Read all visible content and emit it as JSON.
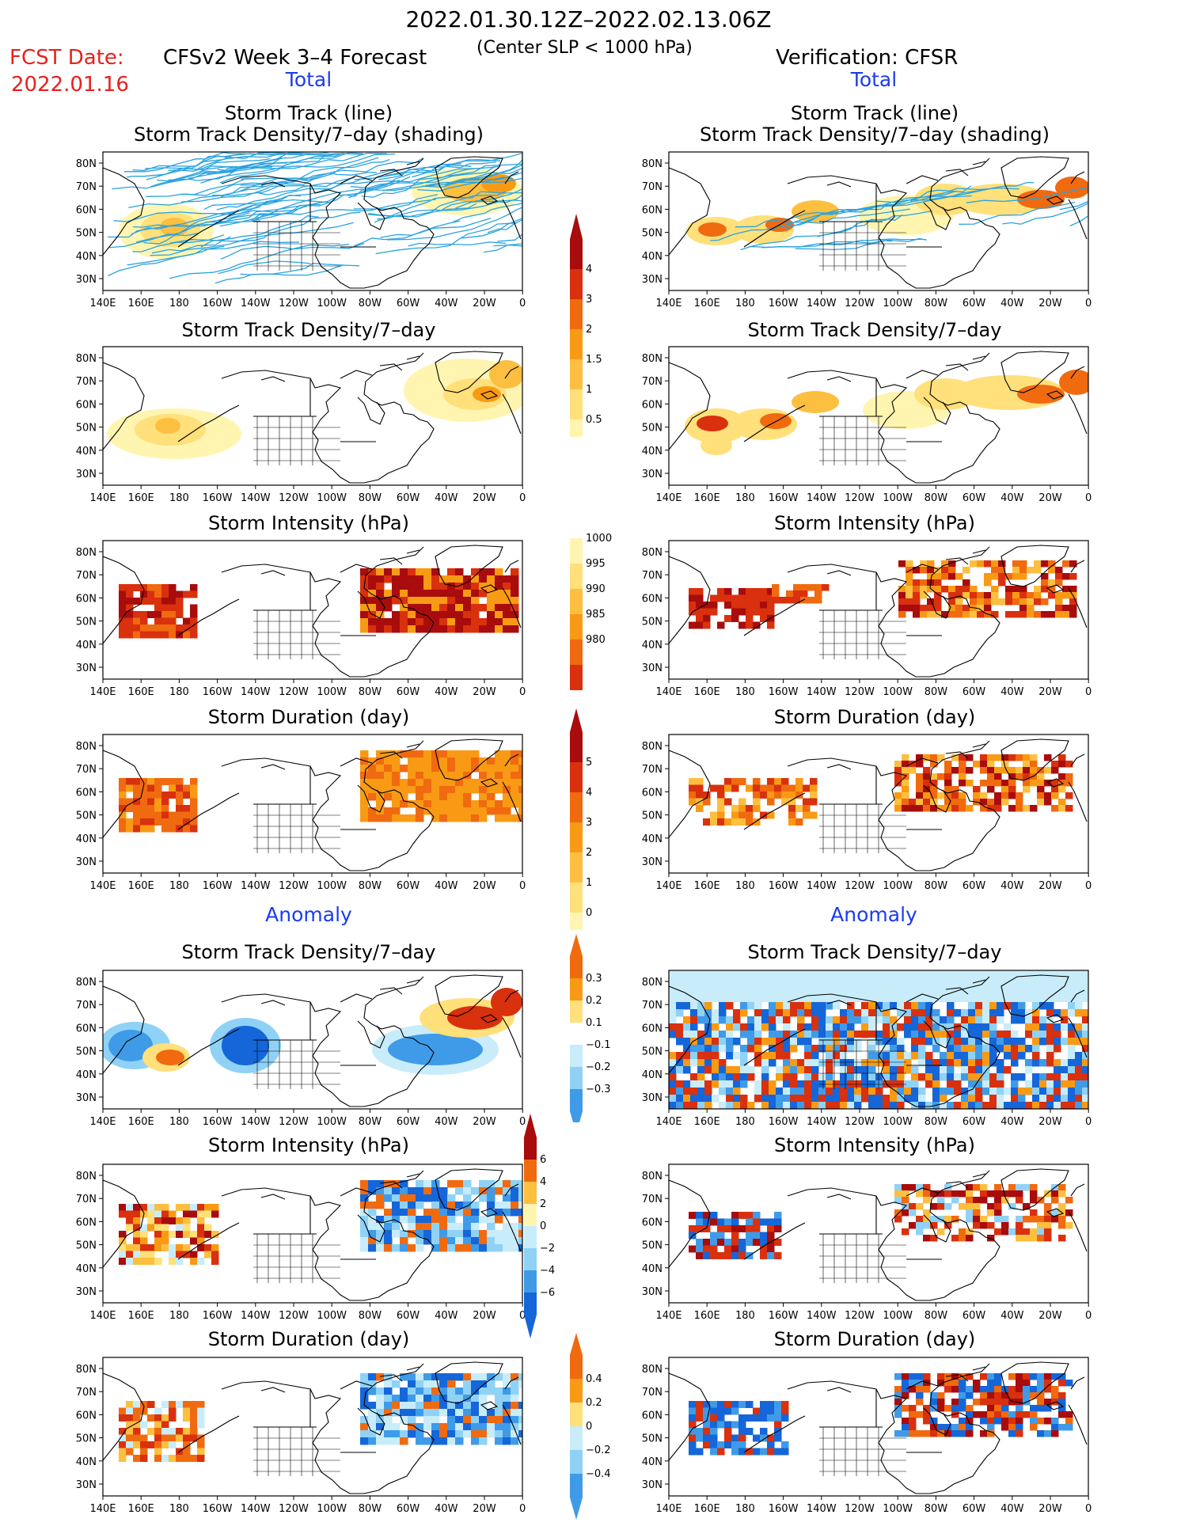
{
  "header": {
    "date_range": "2022.01.30.12Z–2022.02.13.06Z",
    "fcst_label": "FCST Date:",
    "fcst_date": "2022.01.16",
    "forecast_title": "CFSv2 Week 3–4 Forecast",
    "slp_note": "(Center SLP < 1000 hPa)",
    "verification": "Verification: CFSR"
  },
  "sections": {
    "total": "Total",
    "anomaly": "Anomaly"
  },
  "panel_titles": {
    "track_line": "Storm Track (line)",
    "track_shading": "Storm Track Density/7–day (shading)",
    "density": "Storm Track Density/7–day",
    "intensity": "Storm Intensity (hPa)",
    "duration": "Storm Duration (day)"
  },
  "axes": {
    "lat_labels": [
      "80N",
      "70N",
      "60N",
      "50N",
      "40N",
      "30N"
    ],
    "lon_labels": [
      "140E",
      "160E",
      "180",
      "160W",
      "140W",
      "120W",
      "100W",
      "80W",
      "60W",
      "40W",
      "20W",
      "0"
    ]
  },
  "colorbars": {
    "density_total": {
      "labels": [
        "4",
        "3",
        "2",
        "1.5",
        "1",
        "0.5"
      ]
    },
    "intensity_total": {
      "labels": [
        "1000",
        "995",
        "990",
        "985",
        "980"
      ]
    },
    "duration_total": {
      "labels": [
        "5",
        "4",
        "3",
        "2",
        "1",
        "0"
      ]
    },
    "density_anom": {
      "labels": [
        "0.3",
        "0.2",
        "0.1",
        "−0.1",
        "−0.2",
        "−0.3"
      ]
    },
    "intensity_anom": {
      "labels": [
        "6",
        "4",
        "2",
        "0",
        "−2",
        "−4",
        "−6"
      ]
    },
    "duration_anom": {
      "labels": [
        "0.4",
        "0.2",
        "0",
        "−0.2",
        "−0.4"
      ]
    }
  },
  "colors": {
    "track_line": "#29a3e0",
    "warm": [
      "#fff5b0",
      "#ffe07a",
      "#fdbf40",
      "#f99a14",
      "#f06a10",
      "#d9300e",
      "#a80c0c"
    ],
    "cool": [
      "#c8ecfa",
      "#8fd2f6",
      "#3f9be8",
      "#1566d8"
    ]
  }
}
